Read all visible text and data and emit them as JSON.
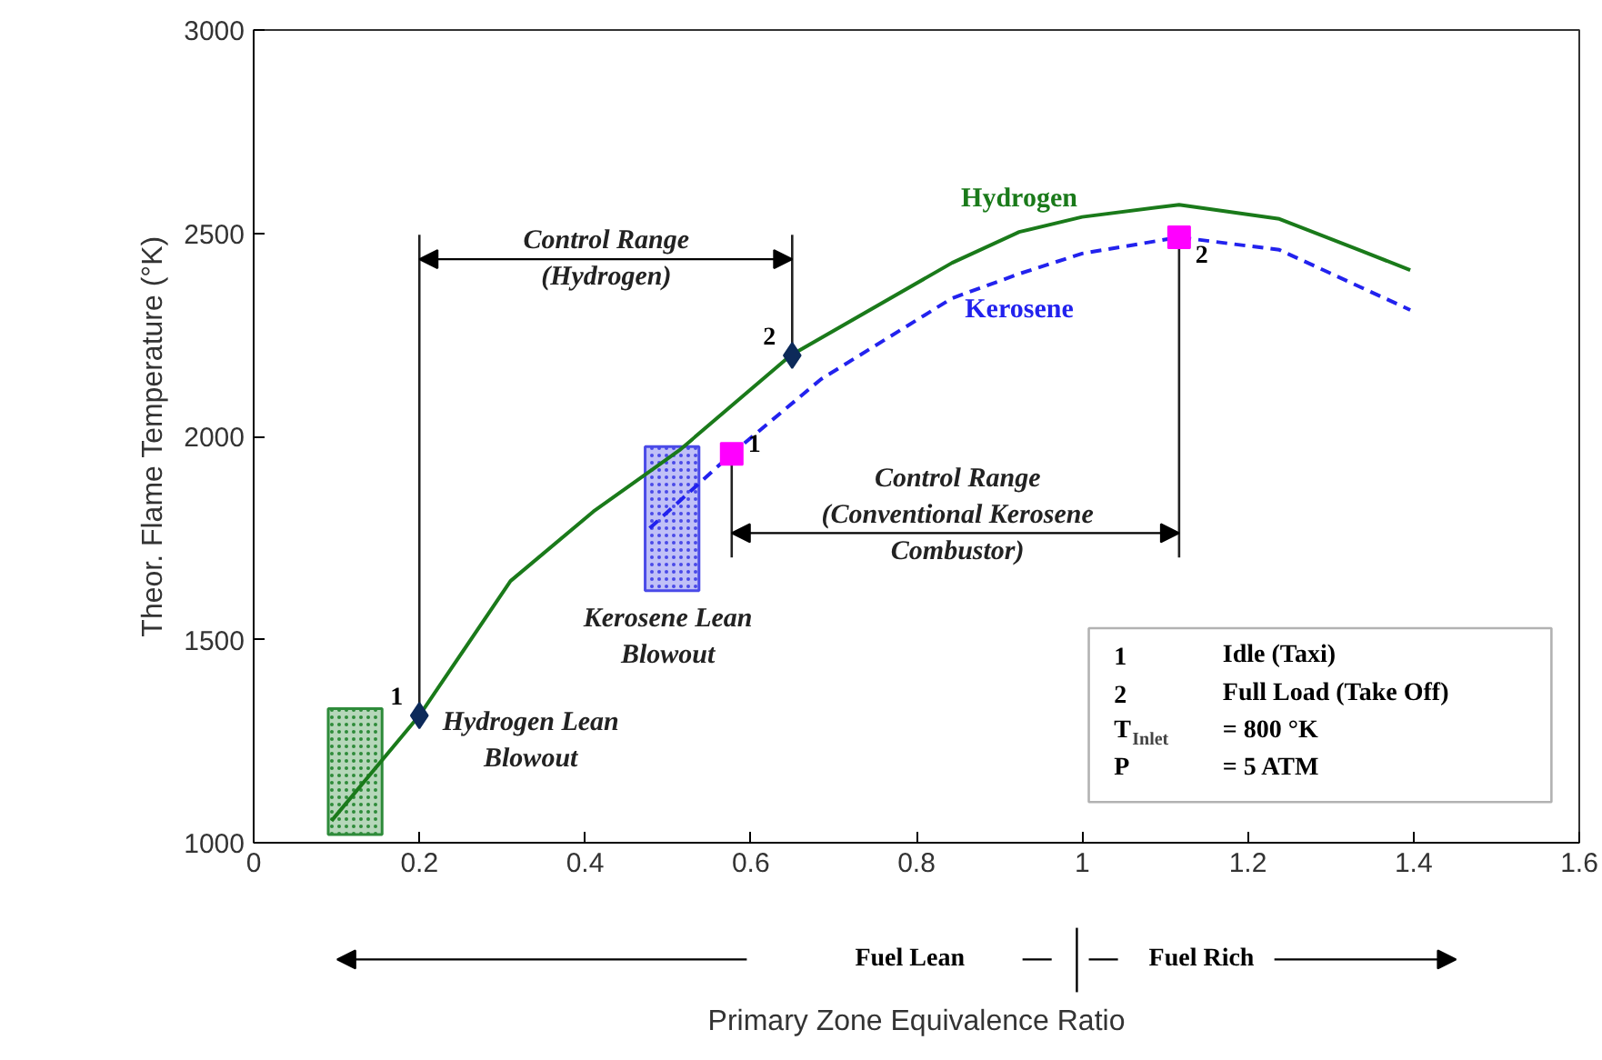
{
  "chart_data": {
    "type": "line",
    "xlabel": "Primary Zone Equivalence Ratio",
    "ylabel": "Theor. Flame Temperature (°K)",
    "xlim": [
      0,
      1.6
    ],
    "ylim": [
      1000,
      3000
    ],
    "xticks": [
      0,
      0.2,
      0.4,
      0.6,
      0.8,
      1,
      1.2,
      1.4,
      1.6
    ],
    "yticks": [
      1000,
      1500,
      2000,
      2500,
      3000
    ],
    "grid": false,
    "legend": false,
    "series": [
      {
        "type": "bar",
        "color": "#2e8b3a",
        "x": [
          0.1225
        ],
        "base": [
          1020
        ],
        "values": [
          310
        ]
      },
      {
        "type": "bar",
        "color": "#4a4ae8",
        "x": [
          0.505
        ],
        "base": [
          1620
        ],
        "values": [
          355
        ]
      },
      {
        "name": "Hydrogen",
        "color": "#1a7a1a",
        "line_style": "solid",
        "x": [
          0.094,
          0.2,
          0.31,
          0.41,
          0.514,
          0.648,
          0.843,
          0.924,
          1.0,
          1.117,
          1.238,
          1.334,
          1.396
        ],
        "values": [
          1054,
          1313,
          1644,
          1815,
          1966,
          2199,
          2427,
          2503,
          2540,
          2570,
          2535,
          2459,
          2409
        ]
      },
      {
        "name": "Kerosene",
        "color": "#2222ee",
        "line_style": "dashed",
        "x": [
          0.478,
          0.577,
          0.685,
          0.843,
          0.924,
          1.0,
          1.117,
          1.238,
          1.396
        ],
        "values": [
          1774,
          1957,
          2141,
          2340,
          2400,
          2450,
          2490,
          2459,
          2311
        ]
      },
      {
        "type": "scatter",
        "marker": "diamond",
        "color": "#0d2a5a",
        "x": [
          0.2,
          0.65
        ],
        "values": [
          1313,
          2199
        ]
      },
      {
        "type": "scatter",
        "marker": "square",
        "color": "#ff00ff",
        "x": [
          0.577,
          1.117
        ],
        "values": [
          1957,
          2490
        ]
      }
    ],
    "annotations": [
      {
        "text": "1",
        "x": 0.2,
        "y": 1313
      },
      {
        "text": "2",
        "x": 0.65,
        "y": 2199
      },
      {
        "text": "1",
        "x": 0.577,
        "y": 1957
      },
      {
        "text": "2",
        "x": 1.117,
        "y": 2490
      },
      "Control Range\n(Hydrogen)",
      "Control Range\n(Conventional Kerosene\nCombustor)",
      "Hydrogen Lean\nBlowout",
      "Kerosene Lean\nBlowout",
      "Fuel Lean",
      "Fuel Rich",
      "1\tIdle (Taxi)",
      "2\tFull Load (Take Off)",
      "T$_{Inlet}$\t= 800 °K",
      "P\t= 5 ATM"
    ]
  }
}
